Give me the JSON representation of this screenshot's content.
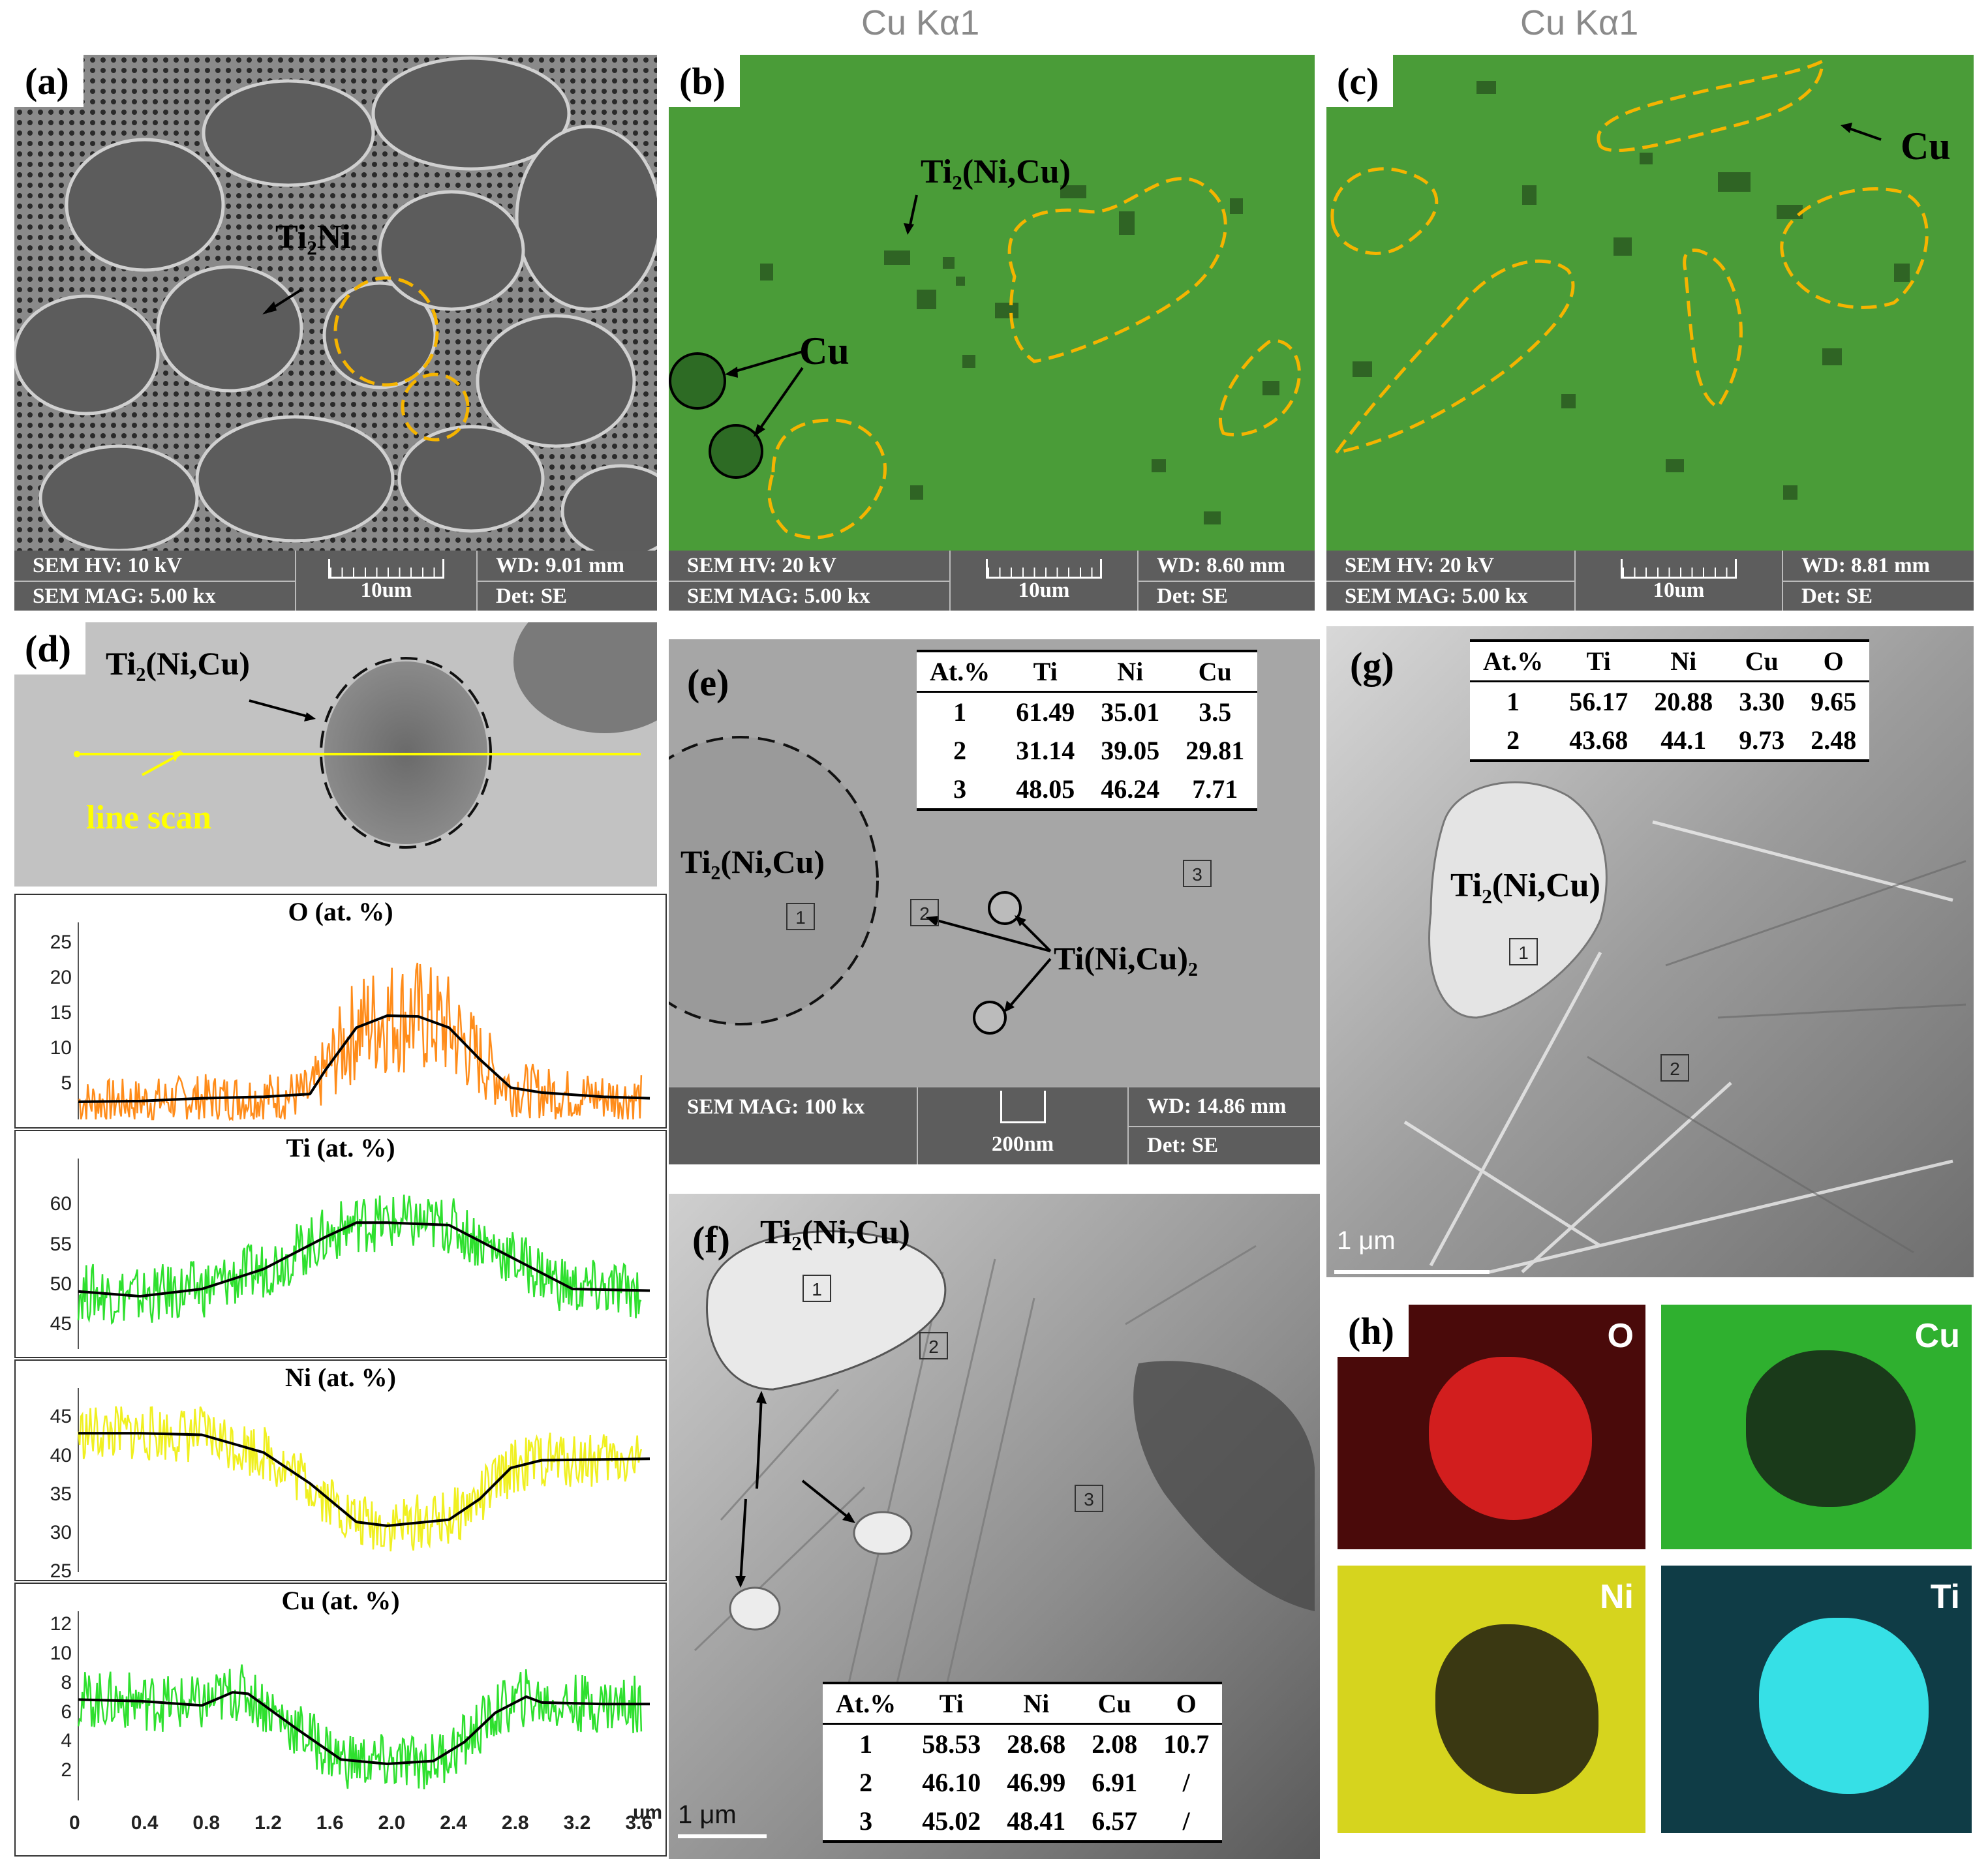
{
  "panels": {
    "a": {
      "label": "(a)",
      "phase": "Ti₂Ni",
      "hv": "SEM HV: 10 kV",
      "mag": "SEM MAG: 5.00 kx",
      "scale": "10um",
      "wd": "WD: 9.01 mm",
      "det": "Det: SE"
    },
    "b": {
      "caption": "Cu Kα1",
      "label": "(b)",
      "phase": "Ti₂(Ni,Cu)",
      "cu": "Cu",
      "hv": "SEM HV: 20 kV",
      "mag": "SEM MAG: 5.00 kx",
      "scale": "10um",
      "wd": "WD: 8.60 mm",
      "det": "Det: SE"
    },
    "c": {
      "caption": "Cu Kα1",
      "label": "(c)",
      "cu": "Cu",
      "hv": "SEM HV: 20 kV",
      "mag": "SEM MAG: 5.00 kx",
      "scale": "10um",
      "wd": "WD: 8.81 mm",
      "det": "Det: SE"
    },
    "d": {
      "label": "(d)",
      "phase": "Ti₂(Ni,Cu)",
      "line_scan": "line scan"
    },
    "e": {
      "label": "(e)",
      "phase": "Ti₂(Ni,Cu)",
      "phase2": "Ti(Ni,Cu)₂",
      "marks": [
        "1",
        "2",
        "3"
      ],
      "mag": "SEM MAG: 100 kx",
      "scale": "200nm",
      "wd": "WD: 14.86 mm",
      "det": "Det: SE"
    },
    "f": {
      "label": "(f)",
      "phase": "Ti₂(Ni,Cu)",
      "marks": [
        "1",
        "2",
        "3"
      ],
      "scale": "1 μm"
    },
    "g": {
      "label": "(g)",
      "phase": "Ti₂(Ni,Cu)",
      "marks": [
        "1",
        "2"
      ],
      "scale": "1 μm"
    },
    "h": {
      "label": "(h)",
      "maps": [
        "O",
        "Cu",
        "Ni",
        "Ti"
      ],
      "colors": [
        "#c41414",
        "#3cc83c",
        "#e6e61e",
        "#28d2d2"
      ]
    }
  },
  "tables": {
    "e": {
      "header": [
        "At.%",
        "Ti",
        "Ni",
        "Cu"
      ],
      "rows": [
        [
          "1",
          "61.49",
          "35.01",
          "3.5"
        ],
        [
          "2",
          "31.14",
          "39.05",
          "29.81"
        ],
        [
          "3",
          "48.05",
          "46.24",
          "7.71"
        ]
      ]
    },
    "f": {
      "header": [
        "At.%",
        "Ti",
        "Ni",
        "Cu",
        "O"
      ],
      "rows": [
        [
          "1",
          "58.53",
          "28.68",
          "2.08",
          "10.7"
        ],
        [
          "2",
          "46.10",
          "46.99",
          "6.91",
          "/"
        ],
        [
          "3",
          "45.02",
          "48.41",
          "6.57",
          "/"
        ]
      ]
    },
    "g": {
      "header": [
        "At.%",
        "Ti",
        "Ni",
        "Cu",
        "O"
      ],
      "rows": [
        [
          "1",
          "56.17",
          "20.88",
          "3.30",
          "9.65"
        ],
        [
          "2",
          "43.68",
          "44.1",
          "9.73",
          "2.48"
        ]
      ]
    }
  },
  "chart_data": [
    {
      "type": "line",
      "title": "O (at. %)",
      "color": "#ff8c1a",
      "xlim": [
        0,
        3.7
      ],
      "ylim": [
        0,
        27
      ],
      "yticks": [
        5,
        10,
        15,
        20,
        25
      ],
      "trend": {
        "x": [
          0,
          0.4,
          0.8,
          1.2,
          1.5,
          1.6,
          1.8,
          2.0,
          2.2,
          2.4,
          2.6,
          2.8,
          3.0,
          3.4,
          3.7
        ],
        "y": [
          2.5,
          2.6,
          3.0,
          3.2,
          3.6,
          7.0,
          13.0,
          14.7,
          14.6,
          13.0,
          8.5,
          4.5,
          3.8,
          3.2,
          3.0
        ]
      }
    },
    {
      "type": "line",
      "title": "Ti (at. %)",
      "color": "#2ee02e",
      "xlim": [
        0,
        3.7
      ],
      "ylim": [
        42,
        65
      ],
      "yticks": [
        45,
        50,
        55,
        60
      ],
      "trend": {
        "x": [
          0,
          0.4,
          0.8,
          1.2,
          1.6,
          1.8,
          2.0,
          2.4,
          2.8,
          3.2,
          3.7
        ],
        "y": [
          49.2,
          48.6,
          49.5,
          52.0,
          56.0,
          57.8,
          57.8,
          57.5,
          53.5,
          49.5,
          49.3
        ]
      }
    },
    {
      "type": "line",
      "title": "Ni (at. %)",
      "color": "#f0f020",
      "xlim": [
        0,
        3.7
      ],
      "ylim": [
        25,
        48
      ],
      "yticks": [
        25,
        30,
        35,
        40,
        45
      ],
      "trend": {
        "x": [
          0,
          0.4,
          0.8,
          1.2,
          1.5,
          1.8,
          2.0,
          2.4,
          2.6,
          2.8,
          3.0,
          3.4,
          3.7
        ],
        "y": [
          43.0,
          43.0,
          42.8,
          40.5,
          36.5,
          31.5,
          31.0,
          31.8,
          34.5,
          38.5,
          39.5,
          39.6,
          39.7
        ]
      }
    },
    {
      "type": "line",
      "title": "Cu (at. %)",
      "color": "#2ee02e",
      "xlim": [
        0,
        3.7
      ],
      "ylim": [
        0,
        12.5
      ],
      "yticks": [
        2,
        4,
        6,
        8,
        10,
        12
      ],
      "xticks": [
        "0",
        "0.4",
        "0.8",
        "1.2",
        "1.6",
        "2.0",
        "2.4",
        "2.8",
        "3.2",
        "3.6"
      ],
      "xunit": "um",
      "trend": {
        "x": [
          0,
          0.4,
          0.8,
          1.0,
          1.1,
          1.4,
          1.7,
          2.0,
          2.3,
          2.5,
          2.7,
          2.9,
          3.0,
          3.4,
          3.7
        ],
        "y": [
          6.9,
          6.8,
          6.5,
          7.4,
          7.3,
          5.0,
          2.8,
          2.5,
          2.7,
          4.0,
          6.0,
          7.1,
          6.7,
          6.6,
          6.6
        ]
      }
    }
  ]
}
